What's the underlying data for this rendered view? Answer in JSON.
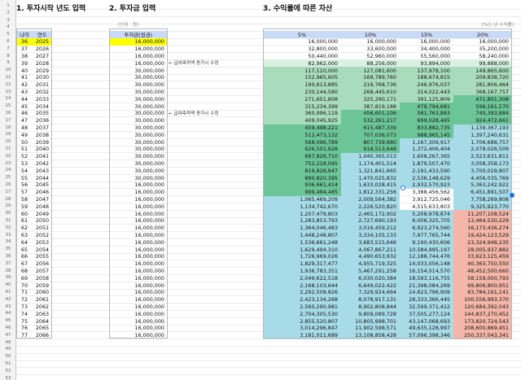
{
  "titles": {
    "t1": "1. 투자시작 년도 입력",
    "t2": "2. 투자금 입력",
    "t3": "3. 수익률에 따른 자산"
  },
  "labels": {
    "unit": "[단위 : 원]",
    "rate_unit": "[%는 년 수익률]"
  },
  "notes": {
    "n1": "← 급여측적액 증가시 수정",
    "n2": "← 급여측적액 증가시 수정"
  },
  "headers": {
    "age": "나이",
    "year": "연도",
    "investment": "투자금(원금)",
    "rates": [
      "5%",
      "10%",
      "15%",
      "20%"
    ]
  },
  "colors": {
    "highlight_yellow": "#ffff00",
    "header_blue": "#c9daf8",
    "green_strong": "#57bb8a",
    "teal": "#a8dbe8",
    "salmon": "#f4b6a9",
    "salmon_deep": "#e88f7c",
    "row_header_bg": "#f3f3f3"
  },
  "rows": [
    {
      "age": "36",
      "year": "2025",
      "inv": "16,000,000",
      "v": [
        "16,000,000",
        "16,000,000",
        "16,000,000",
        "16,000,000"
      ]
    },
    {
      "age": "37",
      "year": "2026",
      "inv": "16,000,000",
      "v": [
        "32,800,000",
        "33,600,000",
        "34,400,000",
        "35,200,000"
      ]
    },
    {
      "age": "38",
      "year": "2027",
      "inv": "16,000,000",
      "v": [
        "50,440,000",
        "52,960,000",
        "55,560,000",
        "58,240,000"
      ]
    },
    {
      "age": "39",
      "year": "2028",
      "inv": "16,000,000",
      "v": [
        "82,962,000",
        "88,256,000",
        "93,894,000",
        "99,888,000"
      ]
    },
    {
      "age": "40",
      "year": "2029",
      "inv": "30,000,000",
      "v": [
        "117,110,000",
        "127,081,600",
        "137,978,100",
        "149,865,600"
      ]
    },
    {
      "age": "41",
      "year": "2030",
      "inv": "30,000,000",
      "v": [
        "152,965,605",
        "169,789,760",
        "188,674,815",
        "209,838,720"
      ]
    },
    {
      "age": "42",
      "year": "2031",
      "inv": "30,000,000",
      "v": [
        "190,613,885",
        "216,768,736",
        "246,976,037",
        "281,806,464"
      ]
    },
    {
      "age": "43",
      "year": "2032",
      "inv": "30,000,000",
      "v": [
        "230,144,580",
        "268,445,610",
        "314,022,443",
        "368,167,757"
      ]
    },
    {
      "age": "44",
      "year": "2033",
      "inv": "30,000,000",
      "v": [
        "271,651,808",
        "325,290,171",
        "391,125,809",
        "471,801,308"
      ]
    },
    {
      "age": "45",
      "year": "2034",
      "inv": "30,000,000",
      "v": [
        "315,234,399",
        "387,819,188",
        "479,794,681",
        "596,161,570"
      ]
    },
    {
      "age": "46",
      "year": "2035",
      "inv": "30,000,000",
      "v": [
        "360,996,119",
        "456,601,106",
        "581,763,883",
        "745,393,884"
      ]
    },
    {
      "age": "47",
      "year": "2036",
      "inv": "30,000,000",
      "v": [
        "409,045,925",
        "532,261,217",
        "699,028,465",
        "924,472,661"
      ]
    },
    {
      "age": "48",
      "year": "2037",
      "inv": "30,000,000",
      "v": [
        "459,498,221",
        "615,487,339",
        "833,882,735",
        "1,139,367,193"
      ]
    },
    {
      "age": "49",
      "year": "2038",
      "inv": "30,000,000",
      "v": [
        "512,473,132",
        "707,036,073",
        "988,965,145",
        "1,397,240,631"
      ]
    },
    {
      "age": "50",
      "year": "2039",
      "inv": "30,000,000",
      "v": [
        "568,096,789",
        "807,739,680",
        "1,167,309,917",
        "1,706,688,757"
      ]
    },
    {
      "age": "51",
      "year": "2040",
      "inv": "30,000,000",
      "v": [
        "626,501,628",
        "918,513,648",
        "1,372,406,404",
        "2,078,026,509"
      ]
    },
    {
      "age": "52",
      "year": "2041",
      "inv": "30,000,000",
      "v": [
        "687,826,710",
        "1,040,365,013",
        "1,608,267,365",
        "2,523,631,811"
      ]
    },
    {
      "age": "53",
      "year": "2042",
      "inv": "30,000,000",
      "v": [
        "752,218,045",
        "1,174,401,514",
        "1,879,507,470",
        "3,058,358,173"
      ]
    },
    {
      "age": "54",
      "year": "2043",
      "inv": "30,000,000",
      "v": [
        "819,828,947",
        "1,321,841,665",
        "2,191,433,590",
        "3,700,029,807"
      ]
    },
    {
      "age": "55",
      "year": "2044",
      "inv": "30,000,000",
      "v": [
        "890,820,395",
        "1,470,025,832",
        "2,536,148,629",
        "4,456,035,769"
      ]
    },
    {
      "age": "56",
      "year": "2045",
      "inv": "16,000,000",
      "v": [
        "936,661,414",
        "1,633,028,415",
        "2,932,570,923",
        "5,363,242,922"
      ]
    },
    {
      "age": "57",
      "year": "2046",
      "inv": "16,000,000",
      "v": [
        "999,494,485",
        "1,812,331,256",
        "3,388,456,562",
        "6,451,891,507"
      ]
    },
    {
      "age": "58",
      "year": "2047",
      "inv": "16,000,000",
      "v": [
        "1,065,469,209",
        "2,009,564,382",
        "3,912,725,046",
        "7,758,269,808"
      ]
    },
    {
      "age": "59",
      "year": "2048",
      "inv": "16,000,000",
      "v": [
        "1,134,742,670",
        "2,226,520,820",
        "4,515,633,803",
        "9,325,923,770"
      ]
    },
    {
      "age": "60",
      "year": "2049",
      "inv": "16,000,000",
      "v": [
        "1,207,479,803",
        "2,465,172,902",
        "5,208,978,874",
        "11,207,108,524"
      ]
    },
    {
      "age": "61",
      "year": "2050",
      "inv": "16,000,000",
      "v": [
        "1,283,853,793",
        "2,727,690,193",
        "6,006,325,705",
        "13,464,530,229"
      ]
    },
    {
      "age": "62",
      "year": "2051",
      "inv": "16,000,000",
      "v": [
        "1,364,046,483",
        "3,016,459,212",
        "6,923,274,560",
        "16,173,436,274"
      ]
    },
    {
      "age": "63",
      "year": "2052",
      "inv": "16,000,000",
      "v": [
        "1,448,248,807",
        "3,334,105,133",
        "7,977,765,744",
        "19,424,123,529"
      ]
    },
    {
      "age": "64",
      "year": "2053",
      "inv": "16,000,000",
      "v": [
        "1,536,661,248",
        "3,683,515,646",
        "9,190,430,606",
        "23,324,948,235"
      ]
    },
    {
      "age": "65",
      "year": "2054",
      "inv": "16,000,000",
      "v": [
        "1,629,494,310",
        "4,067,867,211",
        "10,584,995,197",
        "28,005,937,882"
      ]
    },
    {
      "age": "66",
      "year": "2055",
      "inv": "16,000,000",
      "v": [
        "1,726,969,026",
        "4,490,653,932",
        "12,188,744,476",
        "33,623,125,459"
      ]
    },
    {
      "age": "67",
      "year": "2056",
      "inv": "16,000,000",
      "v": [
        "1,829,317,477",
        "4,955,719,325",
        "14,033,056,148",
        "40,363,750,550"
      ]
    },
    {
      "age": "68",
      "year": "2057",
      "inv": "16,000,000",
      "v": [
        "1,936,783,351",
        "5,467,291,258",
        "16,154,014,570",
        "48,452,500,660"
      ]
    },
    {
      "age": "69",
      "year": "2058",
      "inv": "16,000,000",
      "v": [
        "2,049,622,518",
        "6,030,020,384",
        "18,593,116,755",
        "58,159,000,793"
      ]
    },
    {
      "age": "70",
      "year": "2059",
      "inv": "16,000,000",
      "v": [
        "2,168,103,644",
        "6,649,022,422",
        "21,398,084,269",
        "69,806,800,951"
      ]
    },
    {
      "age": "71",
      "year": "2060",
      "inv": "16,000,000",
      "v": [
        "2,292,508,826",
        "7,329,924,664",
        "24,623,796,909",
        "83,784,161,141"
      ]
    },
    {
      "age": "72",
      "year": "2061",
      "inv": "16,000,000",
      "v": [
        "2,423,134,268",
        "8,078,917,131",
        "28,333,366,445",
        "100,556,993,370"
      ]
    },
    {
      "age": "73",
      "year": "2062",
      "inv": "16,000,000",
      "v": [
        "2,560,290,981",
        "8,902,808,844",
        "32,599,371,412",
        "120,684,392,043"
      ]
    },
    {
      "age": "74",
      "year": "2063",
      "inv": "16,000,000",
      "v": [
        "2,704,305,530",
        "9,809,089,728",
        "37,505,277,124",
        "144,837,270,452"
      ]
    },
    {
      "age": "75",
      "year": "2064",
      "inv": "16,000,000",
      "v": [
        "2,855,520,807",
        "10,805,998,701",
        "43,147,068,693",
        "173,820,724,543"
      ]
    },
    {
      "age": "76",
      "year": "2065",
      "inv": "16,000,000",
      "v": [
        "3,014,296,847",
        "11,902,598,571",
        "49,635,128,997",
        "208,600,869,451"
      ]
    },
    {
      "age": "77",
      "year": "2066",
      "inv": "16,000,000",
      "v": [
        "3,181,011,689",
        "13,108,858,428",
        "57,096,398,346",
        "250,337,043,341"
      ]
    }
  ]
}
